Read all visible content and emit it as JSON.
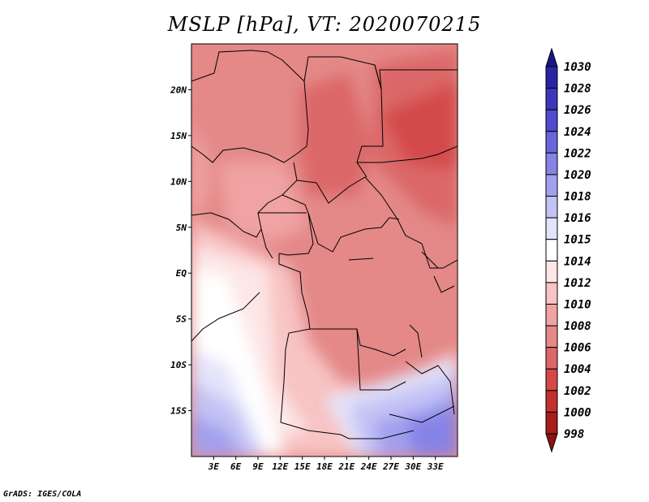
{
  "title": "MSLP [hPa], VT: 2020070215",
  "credit": "GrADS: IGES/COLA",
  "map": {
    "type": "filled-contour",
    "lon_range": [
      0,
      36
    ],
    "lat_range": [
      -20,
      25
    ],
    "lon_ticks": [
      "3E",
      "6E",
      "9E",
      "12E",
      "15E",
      "18E",
      "21E",
      "24E",
      "27E",
      "30E",
      "33E"
    ],
    "lat_ticks": [
      "20N",
      "15N",
      "10N",
      "5N",
      "EQ",
      "5S",
      "10S",
      "15S"
    ]
  },
  "colorbar": {
    "levels": [
      "1030",
      "1028",
      "1026",
      "1024",
      "1022",
      "1020",
      "1018",
      "1016",
      "1015",
      "1014",
      "1012",
      "1010",
      "1008",
      "1006",
      "1004",
      "1002",
      "1000",
      "998"
    ],
    "colors": [
      "#1b1585",
      "#2a24a3",
      "#3b37bb",
      "#4f4cd0",
      "#6966dc",
      "#8683e6",
      "#a2a0ee",
      "#c3c2f5",
      "#e3e3fa",
      "#ffffff",
      "#fde6e6",
      "#f8c3c3",
      "#f0a3a3",
      "#e48888",
      "#db6868",
      "#d44848",
      "#c23030",
      "#a81c1c",
      "#8e1212"
    ]
  }
}
